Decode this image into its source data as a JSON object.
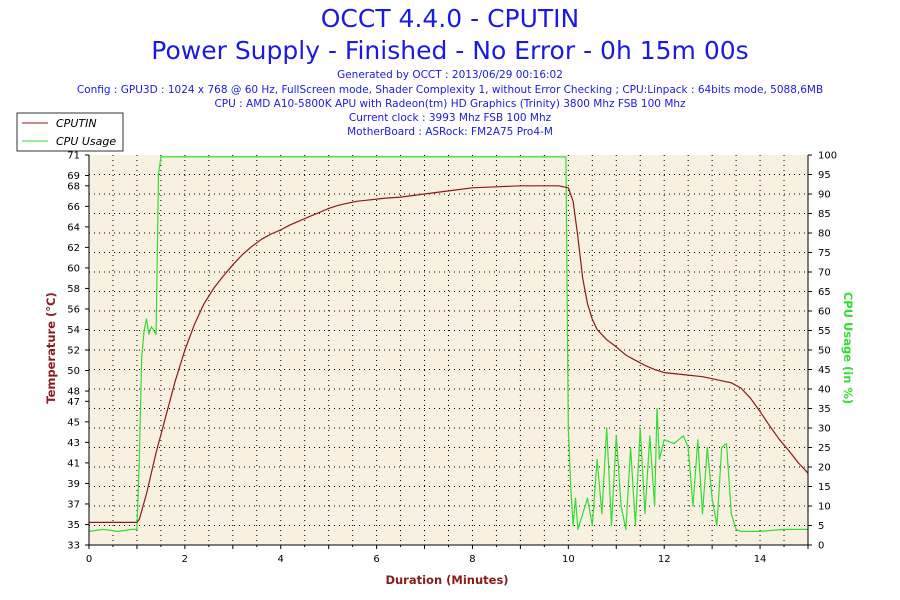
{
  "header": {
    "title": "OCCT 4.4.0 - CPUTIN",
    "subtitle": "Power Supply - Finished - No Error - 0h 15m 00s",
    "info_lines": [
      "Generated by OCCT : 2013/06/29 00:16:02",
      "Config : GPU3D : 1024 x 768 @ 60 Hz, FullScreen mode, Shader Complexity 1, without Error Checking ; CPU:Linpack : 64bits mode, 5088,6MB",
      "CPU : AMD A10-5800K APU with Radeon(tm) HD Graphics (Trinity) 3800 Mhz FSB 100 Mhz",
      "Current clock : 3993 Mhz FSB 100 Mhz",
      "MotherBoard : ASRock: FM2A75 Pro4-M"
    ]
  },
  "colors": {
    "temperature": "#8b1a1a",
    "cpu_usage": "#33dd33",
    "plot_bg": "#f8f0e0",
    "title": "#1a1ae6"
  },
  "chart_data": {
    "type": "line",
    "xlabel": "Duration (Minutes)",
    "ylabel": "Temperature (°C)",
    "y2label": "CPU Usage (in %)",
    "xlim": [
      0,
      15
    ],
    "ylim": [
      33,
      71
    ],
    "y2lim": [
      0,
      100
    ],
    "grid": true,
    "legend_position": "top-left",
    "x_ticks": [
      0,
      2,
      4,
      6,
      8,
      10,
      12,
      14
    ],
    "y_ticks": [
      33,
      35,
      37,
      39,
      41,
      43,
      45,
      47,
      48,
      50,
      52,
      54,
      56,
      58,
      60,
      62,
      64,
      66,
      68,
      69,
      71
    ],
    "y2_ticks": [
      0,
      5,
      10,
      15,
      20,
      25,
      30,
      35,
      40,
      45,
      50,
      55,
      60,
      65,
      70,
      75,
      80,
      85,
      90,
      95,
      100
    ],
    "series": [
      {
        "name": "CPUTIN",
        "axis": "left",
        "points": [
          [
            0,
            35.2
          ],
          [
            1.0,
            35.2
          ],
          [
            1.05,
            35.5
          ],
          [
            1.2,
            38
          ],
          [
            1.4,
            42
          ],
          [
            1.6,
            45.5
          ],
          [
            1.8,
            49
          ],
          [
            2.0,
            52
          ],
          [
            2.2,
            54.5
          ],
          [
            2.4,
            56.5
          ],
          [
            2.6,
            58
          ],
          [
            2.8,
            59.2
          ],
          [
            3.0,
            60.3
          ],
          [
            3.2,
            61.3
          ],
          [
            3.4,
            62.1
          ],
          [
            3.6,
            62.8
          ],
          [
            3.8,
            63.3
          ],
          [
            4.0,
            63.7
          ],
          [
            4.2,
            64.2
          ],
          [
            4.4,
            64.6
          ],
          [
            4.6,
            65.0
          ],
          [
            4.8,
            65.4
          ],
          [
            5.0,
            65.8
          ],
          [
            5.2,
            66.1
          ],
          [
            5.4,
            66.3
          ],
          [
            5.6,
            66.5
          ],
          [
            5.8,
            66.6
          ],
          [
            6.0,
            66.7
          ],
          [
            6.2,
            66.8
          ],
          [
            6.5,
            66.9
          ],
          [
            7.0,
            67.2
          ],
          [
            7.5,
            67.5
          ],
          [
            8.0,
            67.8
          ],
          [
            8.5,
            67.9
          ],
          [
            9.0,
            68.0
          ],
          [
            9.5,
            68.0
          ],
          [
            9.8,
            68.0
          ],
          [
            10.0,
            67.8
          ],
          [
            10.1,
            66.5
          ],
          [
            10.2,
            63
          ],
          [
            10.3,
            59
          ],
          [
            10.4,
            56.5
          ],
          [
            10.5,
            55
          ],
          [
            10.6,
            54
          ],
          [
            10.8,
            53
          ],
          [
            11.0,
            52.3
          ],
          [
            11.2,
            51.5
          ],
          [
            11.4,
            51.0
          ],
          [
            11.6,
            50.5
          ],
          [
            11.8,
            50.1
          ],
          [
            12.0,
            49.8
          ],
          [
            12.4,
            49.6
          ],
          [
            12.8,
            49.4
          ],
          [
            13.0,
            49.2
          ],
          [
            13.2,
            49.0
          ],
          [
            13.4,
            48.8
          ],
          [
            13.6,
            48.3
          ],
          [
            13.8,
            47.3
          ],
          [
            14.0,
            46.0
          ],
          [
            14.2,
            44.6
          ],
          [
            14.4,
            43.3
          ],
          [
            14.6,
            42.2
          ],
          [
            14.8,
            41.0
          ],
          [
            15.0,
            40.0
          ]
        ]
      },
      {
        "name": "CPU Usage",
        "axis": "right",
        "points": [
          [
            0,
            3.5
          ],
          [
            0.3,
            4
          ],
          [
            0.6,
            3.5
          ],
          [
            0.9,
            4
          ],
          [
            1.0,
            4
          ],
          [
            1.05,
            22
          ],
          [
            1.1,
            48
          ],
          [
            1.15,
            55
          ],
          [
            1.2,
            58
          ],
          [
            1.25,
            54
          ],
          [
            1.3,
            56
          ],
          [
            1.4,
            54
          ],
          [
            1.45,
            95
          ],
          [
            1.5,
            99.5
          ],
          [
            2,
            99.5
          ],
          [
            3,
            99.5
          ],
          [
            4,
            99.5
          ],
          [
            5,
            99.5
          ],
          [
            6,
            99.5
          ],
          [
            7,
            99.5
          ],
          [
            8,
            99.5
          ],
          [
            9,
            99.5
          ],
          [
            9.95,
            99.5
          ],
          [
            10.0,
            30
          ],
          [
            10.05,
            15
          ],
          [
            10.1,
            5
          ],
          [
            10.15,
            12
          ],
          [
            10.2,
            4
          ],
          [
            10.3,
            8
          ],
          [
            10.4,
            12
          ],
          [
            10.5,
            5
          ],
          [
            10.6,
            22
          ],
          [
            10.7,
            8
          ],
          [
            10.8,
            30
          ],
          [
            10.9,
            5
          ],
          [
            11.0,
            28
          ],
          [
            11.1,
            10
          ],
          [
            11.2,
            4
          ],
          [
            11.3,
            25
          ],
          [
            11.4,
            5
          ],
          [
            11.5,
            30
          ],
          [
            11.6,
            8
          ],
          [
            11.7,
            28
          ],
          [
            11.8,
            10
          ],
          [
            11.85,
            35
          ],
          [
            11.9,
            22
          ],
          [
            12.0,
            27
          ],
          [
            12.2,
            26
          ],
          [
            12.4,
            28
          ],
          [
            12.5,
            25
          ],
          [
            12.6,
            10
          ],
          [
            12.7,
            27
          ],
          [
            12.8,
            8
          ],
          [
            12.9,
            25
          ],
          [
            13.0,
            12
          ],
          [
            13.1,
            5
          ],
          [
            13.2,
            25
          ],
          [
            13.3,
            26
          ],
          [
            13.4,
            8
          ],
          [
            13.5,
            4
          ],
          [
            13.6,
            3.5
          ],
          [
            14,
            3.5
          ],
          [
            14.5,
            4
          ],
          [
            15,
            4
          ]
        ]
      }
    ]
  }
}
